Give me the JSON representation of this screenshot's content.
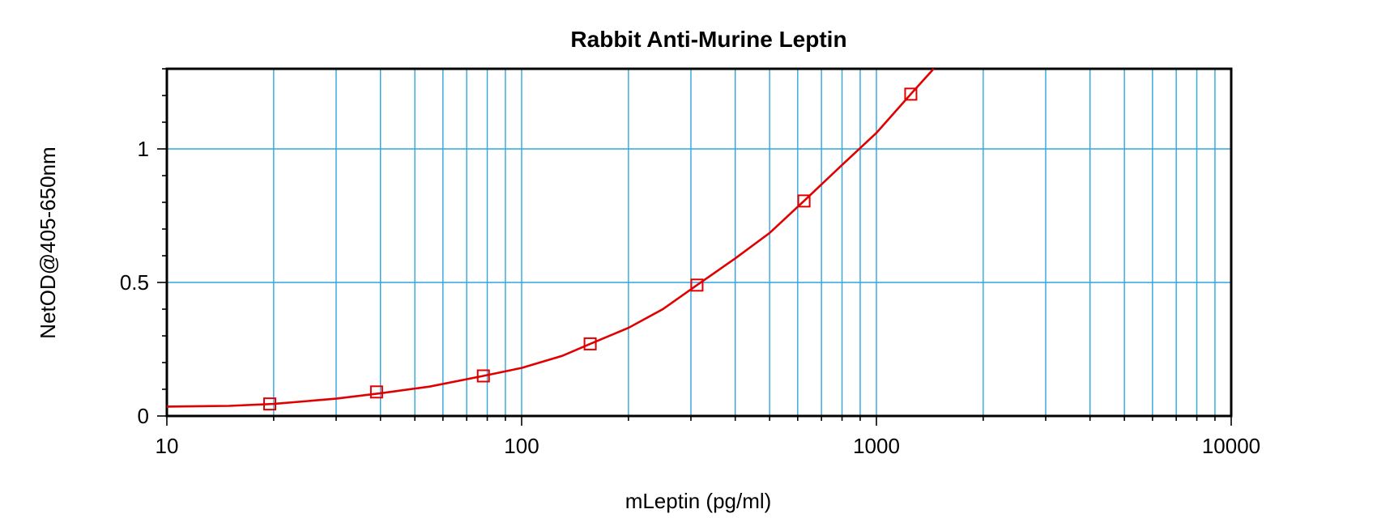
{
  "chart_data": {
    "type": "scatter",
    "title": "Rabbit Anti-Murine Leptin",
    "xlabel": "mLeptin (pg/ml)",
    "ylabel": "NetOD@405-650nm",
    "x_scale": "log",
    "xlim": [
      10,
      10000
    ],
    "ylim": [
      0,
      1.3
    ],
    "x_tick_labels": [
      "10",
      "100",
      "1000",
      "10000"
    ],
    "y_tick_labels": [
      "0",
      "0.5",
      "1"
    ],
    "grid": true,
    "colors": {
      "grid": "#2ea6e0",
      "series": "#e00000",
      "frame": "#000000"
    },
    "series": [
      {
        "points": [
          {
            "x": 19.5,
            "y": 0.045
          },
          {
            "x": 39,
            "y": 0.09
          },
          {
            "x": 78,
            "y": 0.15
          },
          {
            "x": 156,
            "y": 0.27
          },
          {
            "x": 312,
            "y": 0.49
          },
          {
            "x": 625,
            "y": 0.805
          },
          {
            "x": 1250,
            "y": 1.205
          }
        ],
        "marker": "square",
        "fit_curve": [
          {
            "x": 10,
            "y": 0.035
          },
          {
            "x": 15,
            "y": 0.038
          },
          {
            "x": 20,
            "y": 0.045
          },
          {
            "x": 30,
            "y": 0.065
          },
          {
            "x": 40,
            "y": 0.085
          },
          {
            "x": 55,
            "y": 0.11
          },
          {
            "x": 78,
            "y": 0.15
          },
          {
            "x": 100,
            "y": 0.18
          },
          {
            "x": 130,
            "y": 0.225
          },
          {
            "x": 156,
            "y": 0.27
          },
          {
            "x": 200,
            "y": 0.33
          },
          {
            "x": 250,
            "y": 0.4
          },
          {
            "x": 312,
            "y": 0.49
          },
          {
            "x": 400,
            "y": 0.59
          },
          {
            "x": 500,
            "y": 0.685
          },
          {
            "x": 625,
            "y": 0.805
          },
          {
            "x": 800,
            "y": 0.94
          },
          {
            "x": 1000,
            "y": 1.06
          },
          {
            "x": 1250,
            "y": 1.205
          },
          {
            "x": 1450,
            "y": 1.3
          }
        ]
      }
    ]
  }
}
